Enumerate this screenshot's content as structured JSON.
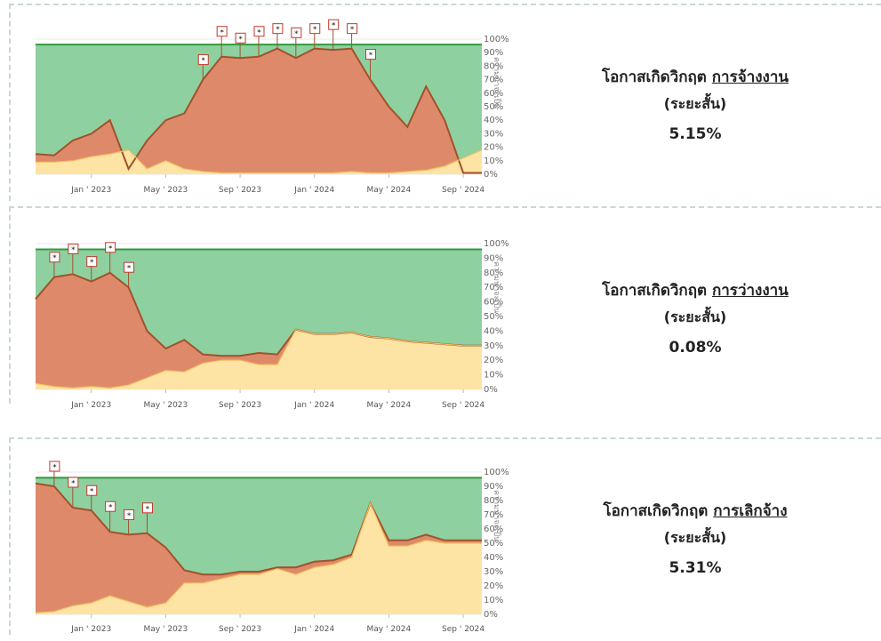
{
  "chart_data": [
    {
      "type": "area",
      "x": [
        "Oct 2022",
        "Nov 2022",
        "Dec 2022",
        "Jan 2023",
        "Feb 2023",
        "Mar 2023",
        "Apr 2023",
        "May 2023",
        "Jun 2023",
        "Jul 2023",
        "Aug 2023",
        "Sep 2023",
        "Oct 2023",
        "Nov 2023",
        "Dec 2023",
        "Jan 2024",
        "Feb 2024",
        "Mar 2024",
        "Apr 2024",
        "May 2024",
        "Jun 2024",
        "Jul 2024",
        "Aug 2024",
        "Sep 2024",
        "Oct 2024"
      ],
      "x_ticks": [
        "Jan ' 2023",
        "May ' 2023",
        "Sep ' 2023",
        "Jan ' 2024",
        "May ' 2024",
        "Sep ' 2024"
      ],
      "y_ticks": [
        "0%",
        "10%",
        "20%",
        "30%",
        "40%",
        "50%",
        "60%",
        "70%",
        "80%",
        "90%",
        "100%"
      ],
      "ylim": [
        0,
        100
      ],
      "ylabel": "ความน่าจะเป็น",
      "series": [
        {
          "values": [
            9,
            9,
            10,
            13,
            15,
            18,
            4,
            10,
            4,
            2,
            1,
            1,
            1,
            1,
            1,
            1,
            1,
            2,
            1,
            1,
            2,
            3,
            6,
            12,
            18
          ]
        },
        {
          "values": [
            15,
            14,
            25,
            30,
            40,
            4,
            25,
            40,
            45,
            70,
            87,
            86,
            87,
            93,
            86,
            93,
            92,
            93,
            70,
            50,
            35,
            65,
            40,
            1,
            1
          ]
        },
        {
          "values": [
            96,
            96,
            96,
            96,
            96,
            96,
            96,
            96,
            96,
            96,
            96,
            96,
            96,
            96,
            96,
            96,
            96,
            96,
            96,
            96,
            96,
            96,
            96,
            96,
            96
          ]
        }
      ],
      "flags": [
        {
          "text": "*",
          "index": 9
        },
        {
          "text": "*",
          "index": 10
        },
        {
          "text": "*",
          "index": 11
        },
        {
          "text": "*",
          "index": 12
        },
        {
          "text": "*",
          "index": 13
        },
        {
          "text": "*",
          "index": 14
        },
        {
          "text": "*",
          "index": 15
        },
        {
          "text": "*",
          "index": 16
        },
        {
          "text": "*",
          "index": 17
        },
        {
          "text": "*",
          "index": 18
        }
      ],
      "title_prefix": "โอกาสเกิดวิกฤต",
      "title_topic": "การจ้างงาน",
      "title_term": "(ระยะสั้น)",
      "value_text": "5.15%",
      "colors": {
        "top": "#8fd0a0",
        "mid": "#de8a6a",
        "low": "#fde3a4",
        "line": "#2f9a3c",
        "edge": "#a0522d"
      }
    },
    {
      "type": "area",
      "x_ticks": [
        "Jan ' 2023",
        "May ' 2023",
        "Sep ' 2023",
        "Jan ' 2024",
        "May ' 2024",
        "Sep ' 2024"
      ],
      "y_ticks": [
        "0%",
        "10%",
        "20%",
        "30%",
        "40%",
        "50%",
        "60%",
        "70%",
        "80%",
        "90%",
        "100%"
      ],
      "ylim": [
        0,
        100
      ],
      "ylabel": "ความน่าจะเป็น",
      "series": [
        {
          "values": [
            4,
            2,
            1,
            2,
            1,
            3,
            8,
            13,
            12,
            18,
            20,
            20,
            17,
            17,
            41,
            38,
            38,
            39,
            36,
            35,
            33,
            32,
            31,
            30,
            30
          ]
        },
        {
          "values": [
            62,
            77,
            79,
            74,
            80,
            70,
            40,
            28,
            34,
            24,
            23,
            23,
            25,
            24,
            41,
            38,
            38,
            39,
            36,
            35,
            33,
            32,
            31,
            30,
            30
          ]
        },
        {
          "values": [
            96,
            96,
            96,
            96,
            96,
            96,
            96,
            96,
            96,
            96,
            96,
            96,
            96,
            96,
            96,
            96,
            96,
            96,
            96,
            96,
            96,
            96,
            96,
            96,
            96
          ]
        }
      ],
      "flags": [
        {
          "text": "*",
          "index": 1
        },
        {
          "text": "*",
          "index": 2
        },
        {
          "text": "*",
          "index": 3
        },
        {
          "text": "*",
          "index": 4
        },
        {
          "text": "*",
          "index": 5
        }
      ],
      "title_prefix": "โอกาสเกิดวิกฤต",
      "title_topic": "การว่างงาน",
      "title_term": "(ระยะสั้น)",
      "value_text": "0.08%",
      "colors": {
        "top": "#8fd0a0",
        "mid": "#de8a6a",
        "low": "#fde3a4",
        "line": "#2f9a3c",
        "edge": "#a0522d"
      }
    },
    {
      "type": "area",
      "x_ticks": [
        "Jan ' 2023",
        "May ' 2023",
        "Sep ' 2023",
        "Jan ' 2024",
        "May ' 2024",
        "Sep ' 2024"
      ],
      "y_ticks": [
        "0%",
        "10%",
        "20%",
        "30%",
        "40%",
        "50%",
        "60%",
        "70%",
        "80%",
        "90%",
        "100%"
      ],
      "ylim": [
        0,
        100
      ],
      "ylabel": "ความน่าจะเป็น",
      "series": [
        {
          "values": [
            1,
            2,
            6,
            8,
            13,
            9,
            5,
            8,
            22,
            22,
            25,
            28,
            28,
            32,
            28,
            33,
            35,
            40,
            78,
            48,
            48,
            52,
            50,
            50,
            50
          ]
        },
        {
          "values": [
            92,
            90,
            75,
            73,
            58,
            56,
            57,
            47,
            31,
            28,
            28,
            30,
            30,
            33,
            33,
            37,
            38,
            42,
            78,
            52,
            52,
            56,
            52,
            52,
            52
          ]
        },
        {
          "values": [
            96,
            96,
            96,
            96,
            96,
            96,
            96,
            96,
            96,
            96,
            96,
            96,
            96,
            96,
            96,
            96,
            96,
            96,
            96,
            96,
            96,
            96,
            96,
            96,
            96
          ]
        }
      ],
      "flags": [
        {
          "text": "*",
          "index": 1
        },
        {
          "text": "*",
          "index": 2
        },
        {
          "text": "*",
          "index": 3
        },
        {
          "text": "*",
          "index": 4
        },
        {
          "text": "*",
          "index": 5
        },
        {
          "text": "*",
          "index": 6
        }
      ],
      "title_prefix": "โอกาสเกิดวิกฤต",
      "title_topic": "การเลิกจ้าง",
      "title_term": "(ระยะสั้น)",
      "value_text": "5.31%",
      "colors": {
        "top": "#8fd0a0",
        "mid": "#de8a6a",
        "low": "#fde3a4",
        "line": "#2f9a3c",
        "edge": "#a0522d"
      }
    }
  ]
}
